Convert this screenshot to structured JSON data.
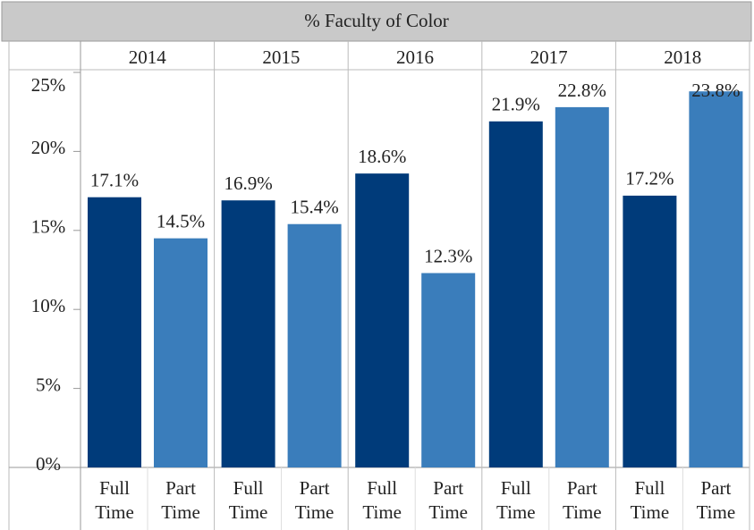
{
  "chart_data": {
    "type": "bar",
    "title": "% Faculty of Color",
    "categories": [
      "2014",
      "2015",
      "2016",
      "2017",
      "2018"
    ],
    "series": [
      {
        "name": "Full Time",
        "color": "#003b7a",
        "values": [
          17.1,
          16.9,
          18.6,
          21.9,
          17.2
        ],
        "value_labels": [
          "17.1%",
          "16.9%",
          "18.6%",
          "21.9%",
          "17.2%"
        ]
      },
      {
        "name": "Part Time",
        "color": "#3a7dbb",
        "values": [
          14.5,
          15.4,
          12.3,
          22.8,
          23.8
        ],
        "value_labels": [
          "14.5%",
          "15.4%",
          "12.3%",
          "22.8%",
          "23.8%"
        ]
      }
    ],
    "ylim": [
      0,
      25
    ],
    "yticks": [
      {
        "value": 0,
        "label": "0%"
      },
      {
        "value": 5,
        "label": "5%"
      },
      {
        "value": 10,
        "label": "10%"
      },
      {
        "value": 15,
        "label": "15%"
      },
      {
        "value": 20,
        "label": "20%"
      },
      {
        "value": 25,
        "label": "25%"
      }
    ]
  }
}
